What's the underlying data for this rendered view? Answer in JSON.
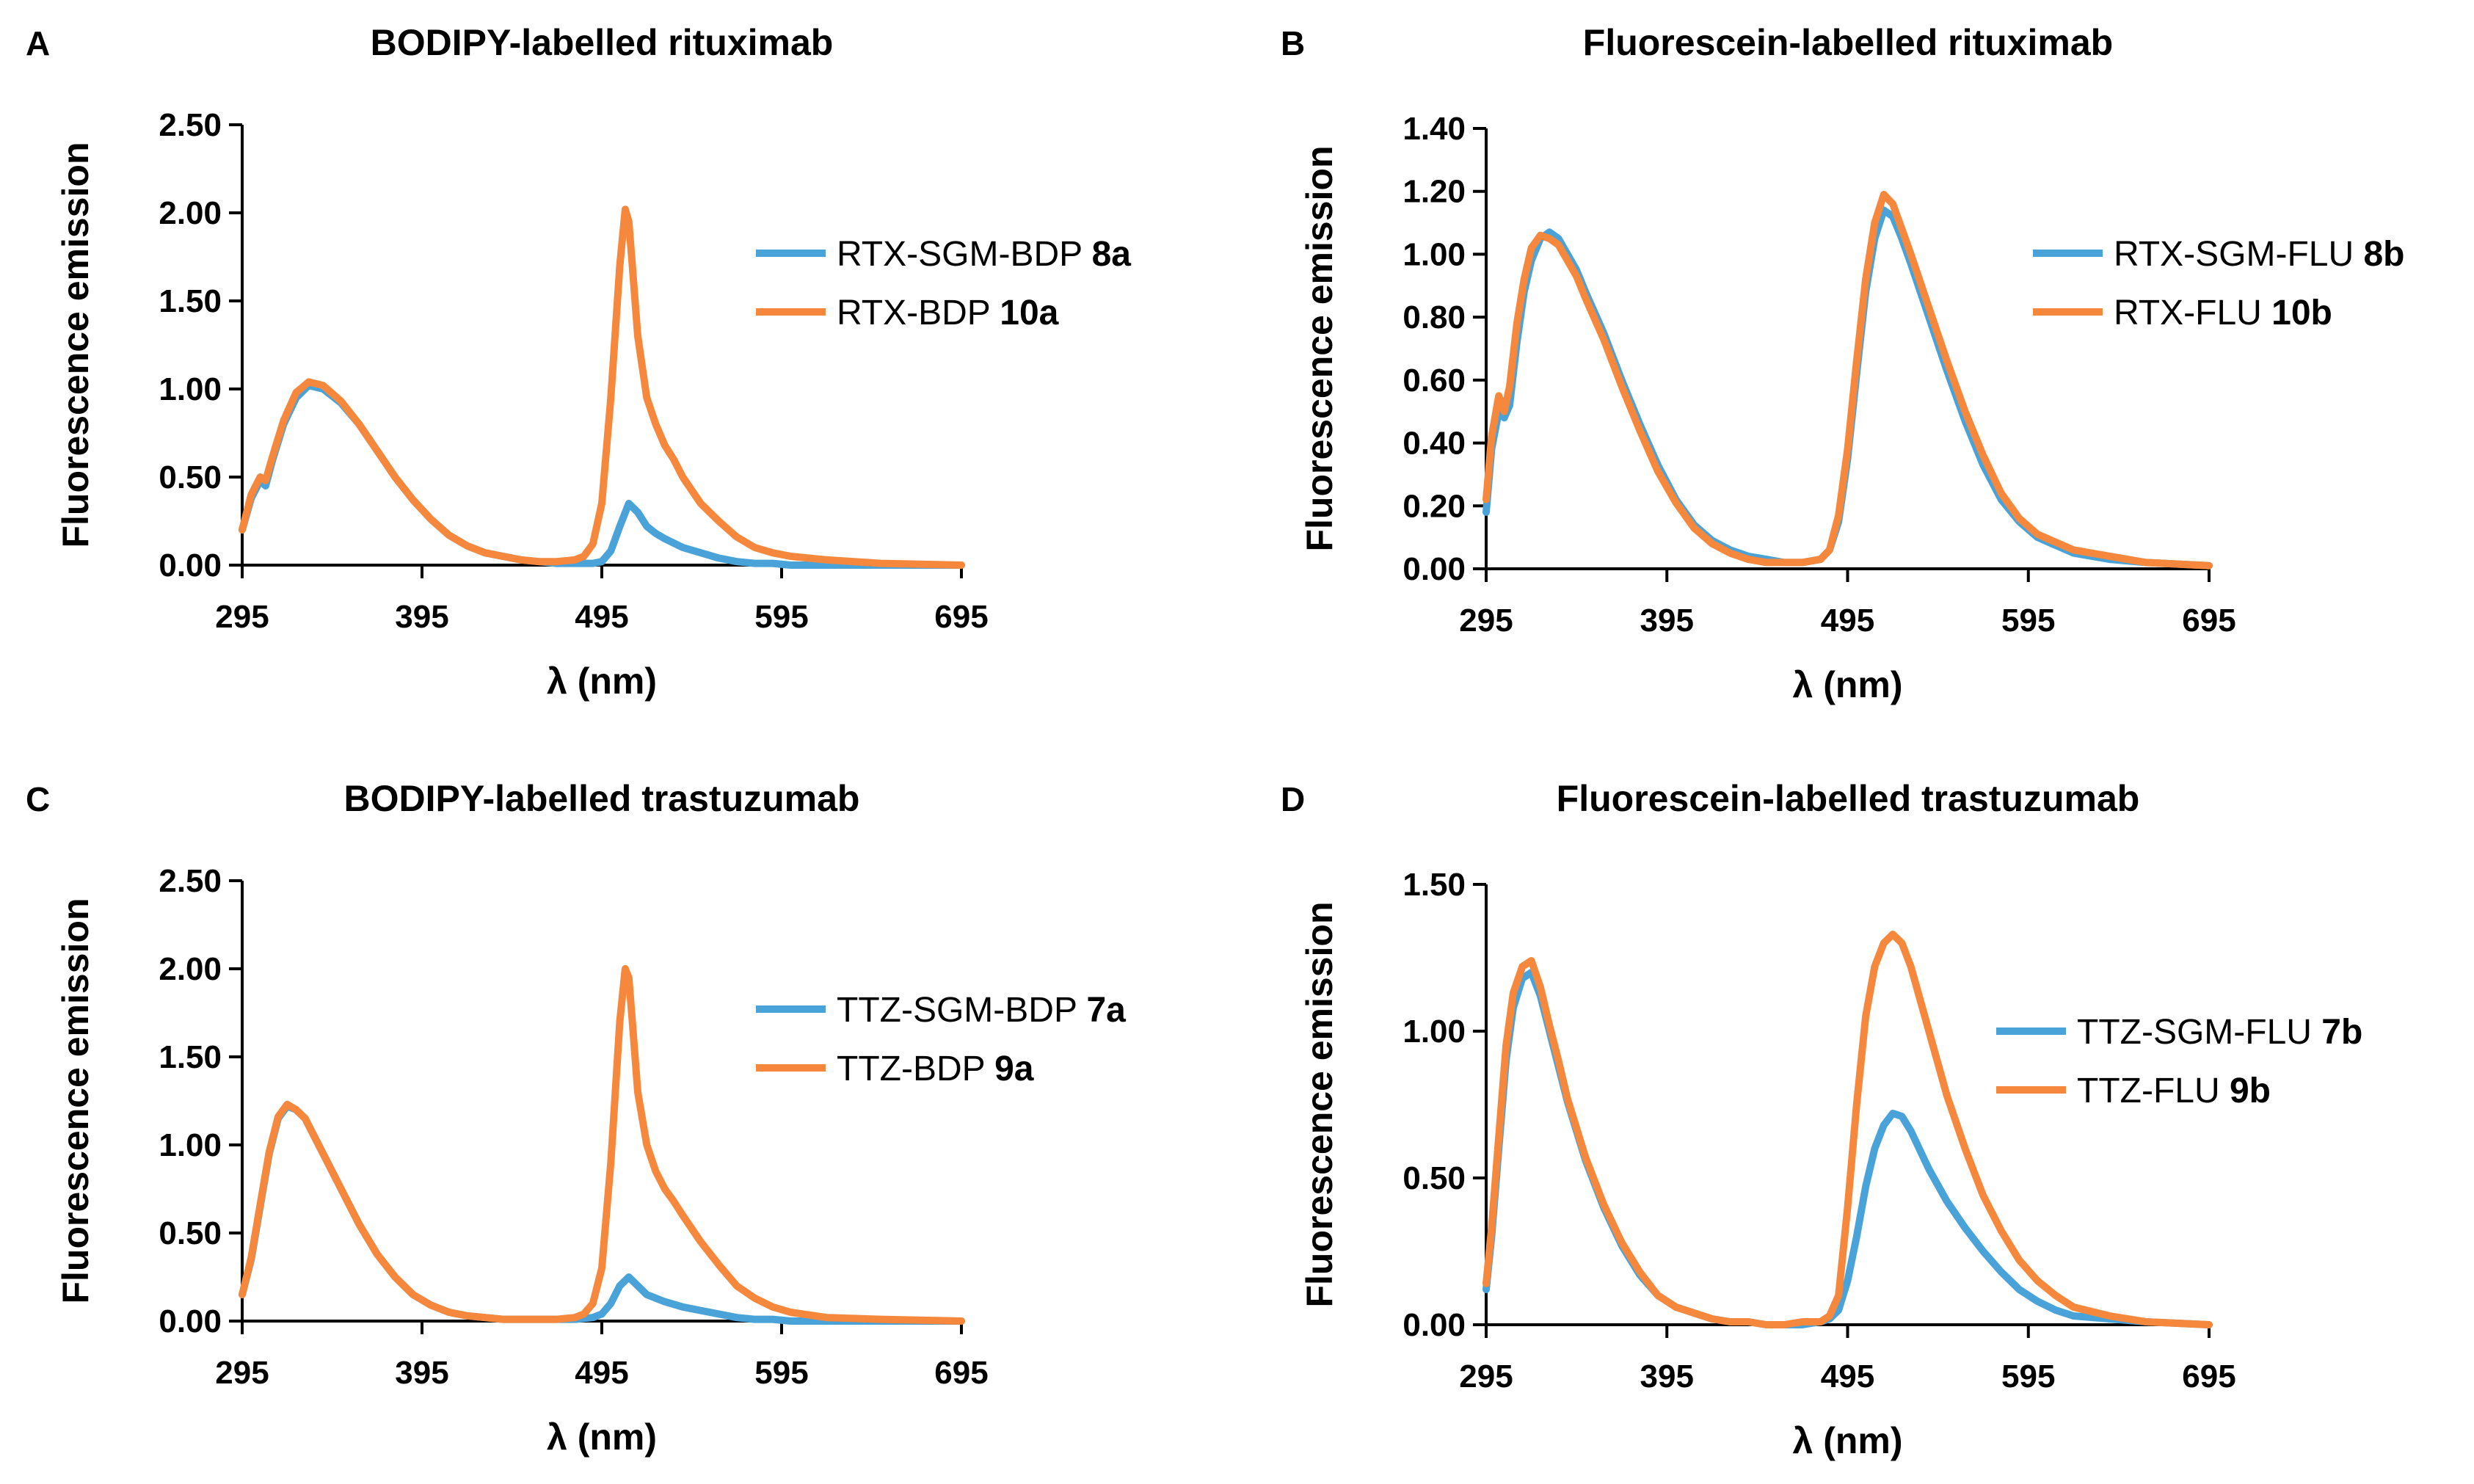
{
  "colors": {
    "blue": "#4aa3d8",
    "orange": "#f5883c",
    "axis": "#000000"
  },
  "chart_data": [
    {
      "type": "line",
      "panel_letter": "A",
      "title": "BODIPY-labelled rituximab",
      "xlabel": "λ (nm)",
      "ylabel": "Fluorescence emission",
      "xlim": [
        295,
        695
      ],
      "ylim": [
        0,
        2.5
      ],
      "xticks": [
        295,
        395,
        495,
        595,
        695
      ],
      "xtick_labels": [
        "295",
        "395",
        "495",
        "595",
        "695"
      ],
      "yticks": [
        0,
        0.5,
        1.0,
        1.5,
        2.0,
        2.5
      ],
      "ytick_labels": [
        "0.00",
        "0.50",
        "1.00",
        "1.50",
        "2.00",
        "2.50"
      ],
      "legend": "right",
      "series": [
        {
          "name": "RTX-SGM-BDP",
          "id_label": "8a",
          "color": "#4aa3d8",
          "x": [
            295,
            300,
            305,
            308,
            312,
            318,
            325,
            332,
            340,
            350,
            360,
            370,
            380,
            390,
            400,
            410,
            420,
            430,
            440,
            450,
            460,
            470,
            480,
            490,
            495,
            500,
            505,
            510,
            515,
            520,
            525,
            530,
            540,
            550,
            560,
            570,
            580,
            590,
            600,
            620,
            650,
            695
          ],
          "y": [
            0.2,
            0.38,
            0.48,
            0.45,
            0.6,
            0.8,
            0.95,
            1.02,
            1.0,
            0.92,
            0.8,
            0.65,
            0.5,
            0.37,
            0.26,
            0.17,
            0.11,
            0.07,
            0.05,
            0.03,
            0.02,
            0.01,
            0.01,
            0.01,
            0.02,
            0.08,
            0.22,
            0.35,
            0.3,
            0.22,
            0.18,
            0.15,
            0.1,
            0.07,
            0.04,
            0.02,
            0.01,
            0.01,
            0.0,
            0.0,
            0.0,
            0.0
          ]
        },
        {
          "name": "RTX-BDP",
          "id_label": "10a",
          "color": "#f5883c",
          "x": [
            295,
            300,
            305,
            308,
            312,
            318,
            325,
            332,
            340,
            350,
            360,
            370,
            380,
            390,
            400,
            410,
            420,
            430,
            440,
            450,
            460,
            470,
            480,
            485,
            490,
            495,
            500,
            505,
            508,
            510,
            512,
            515,
            520,
            525,
            530,
            535,
            540,
            550,
            560,
            570,
            580,
            590,
            600,
            620,
            650,
            695
          ],
          "y": [
            0.2,
            0.4,
            0.5,
            0.48,
            0.62,
            0.82,
            0.98,
            1.04,
            1.02,
            0.93,
            0.8,
            0.65,
            0.5,
            0.37,
            0.26,
            0.17,
            0.11,
            0.07,
            0.05,
            0.03,
            0.02,
            0.02,
            0.03,
            0.05,
            0.12,
            0.35,
            0.95,
            1.7,
            2.02,
            1.95,
            1.7,
            1.3,
            0.95,
            0.8,
            0.68,
            0.6,
            0.5,
            0.35,
            0.25,
            0.16,
            0.1,
            0.07,
            0.05,
            0.03,
            0.01,
            0.0
          ]
        }
      ]
    },
    {
      "type": "line",
      "panel_letter": "B",
      "title": "Fluorescein-labelled rituximab",
      "xlabel": "λ (nm)",
      "ylabel": "Fluorescence emission",
      "xlim": [
        295,
        695
      ],
      "ylim": [
        0,
        1.4
      ],
      "xticks": [
        295,
        395,
        495,
        595,
        695
      ],
      "xtick_labels": [
        "295",
        "395",
        "495",
        "595",
        "695"
      ],
      "yticks": [
        0,
        0.2,
        0.4,
        0.6,
        0.8,
        1.0,
        1.2,
        1.4
      ],
      "ytick_labels": [
        "0.00",
        "0.20",
        "0.40",
        "0.60",
        "0.80",
        "1.00",
        "1.20",
        "1.40"
      ],
      "legend": "right",
      "series": [
        {
          "name": "RTX-SGM-FLU",
          "id_label": "8b",
          "color": "#4aa3d8",
          "x": [
            295,
            298,
            302,
            305,
            308,
            312,
            316,
            320,
            325,
            330,
            335,
            340,
            345,
            350,
            360,
            370,
            380,
            390,
            400,
            410,
            420,
            430,
            440,
            450,
            460,
            470,
            480,
            485,
            490,
            495,
            500,
            505,
            510,
            515,
            520,
            525,
            530,
            540,
            550,
            560,
            570,
            580,
            590,
            600,
            620,
            640,
            660,
            695
          ],
          "y": [
            0.18,
            0.38,
            0.5,
            0.48,
            0.52,
            0.72,
            0.88,
            0.98,
            1.05,
            1.07,
            1.05,
            1.0,
            0.95,
            0.88,
            0.75,
            0.6,
            0.46,
            0.33,
            0.22,
            0.14,
            0.09,
            0.06,
            0.04,
            0.03,
            0.02,
            0.02,
            0.03,
            0.06,
            0.15,
            0.35,
            0.62,
            0.88,
            1.05,
            1.14,
            1.12,
            1.05,
            0.97,
            0.8,
            0.63,
            0.47,
            0.33,
            0.22,
            0.15,
            0.1,
            0.05,
            0.03,
            0.02,
            0.01
          ]
        },
        {
          "name": "RTX-FLU",
          "id_label": "10b",
          "color": "#f5883c",
          "x": [
            295,
            298,
            302,
            305,
            308,
            312,
            316,
            320,
            325,
            330,
            335,
            340,
            345,
            350,
            360,
            370,
            380,
            390,
            400,
            410,
            420,
            430,
            440,
            450,
            460,
            470,
            480,
            485,
            490,
            495,
            500,
            505,
            510,
            515,
            520,
            525,
            530,
            540,
            550,
            560,
            570,
            580,
            590,
            600,
            620,
            640,
            660,
            695
          ],
          "y": [
            0.22,
            0.42,
            0.55,
            0.5,
            0.58,
            0.78,
            0.92,
            1.02,
            1.06,
            1.05,
            1.03,
            0.98,
            0.93,
            0.86,
            0.73,
            0.58,
            0.44,
            0.31,
            0.21,
            0.13,
            0.08,
            0.05,
            0.03,
            0.02,
            0.02,
            0.02,
            0.03,
            0.06,
            0.17,
            0.38,
            0.66,
            0.92,
            1.1,
            1.19,
            1.16,
            1.08,
            1.0,
            0.83,
            0.66,
            0.5,
            0.36,
            0.24,
            0.16,
            0.11,
            0.06,
            0.04,
            0.02,
            0.01
          ]
        }
      ]
    },
    {
      "type": "line",
      "panel_letter": "C",
      "title": "BODIPY-labelled trastuzumab",
      "xlabel": "λ (nm)",
      "ylabel": "Fluorescence emission",
      "xlim": [
        295,
        695
      ],
      "ylim": [
        0,
        2.5
      ],
      "xticks": [
        295,
        395,
        495,
        595,
        695
      ],
      "xtick_labels": [
        "295",
        "395",
        "495",
        "595",
        "695"
      ],
      "yticks": [
        0,
        0.5,
        1.0,
        1.5,
        2.0,
        2.5
      ],
      "ytick_labels": [
        "0.00",
        "0.50",
        "1.00",
        "1.50",
        "2.00",
        "2.50"
      ],
      "legend": "right",
      "series": [
        {
          "name": "TTZ-SGM-BDP",
          "id_label": "7a",
          "color": "#4aa3d8",
          "x": [
            295,
            300,
            305,
            310,
            315,
            320,
            325,
            330,
            335,
            340,
            350,
            360,
            370,
            380,
            390,
            400,
            410,
            420,
            430,
            440,
            450,
            460,
            470,
            480,
            490,
            495,
            500,
            505,
            510,
            515,
            520,
            525,
            530,
            540,
            550,
            560,
            570,
            580,
            590,
            600,
            620,
            650,
            695
          ],
          "y": [
            0.15,
            0.35,
            0.65,
            0.95,
            1.15,
            1.22,
            1.2,
            1.15,
            1.05,
            0.95,
            0.75,
            0.55,
            0.38,
            0.25,
            0.15,
            0.09,
            0.05,
            0.03,
            0.02,
            0.01,
            0.01,
            0.01,
            0.01,
            0.01,
            0.02,
            0.04,
            0.1,
            0.2,
            0.25,
            0.2,
            0.15,
            0.13,
            0.11,
            0.08,
            0.06,
            0.04,
            0.02,
            0.01,
            0.01,
            0.0,
            0.0,
            0.0,
            0.0
          ]
        },
        {
          "name": "TTZ-BDP",
          "id_label": "9a",
          "color": "#f5883c",
          "x": [
            295,
            300,
            305,
            310,
            315,
            320,
            325,
            330,
            335,
            340,
            350,
            360,
            370,
            380,
            390,
            400,
            410,
            420,
            430,
            440,
            450,
            460,
            470,
            480,
            485,
            490,
            495,
            500,
            505,
            508,
            510,
            512,
            515,
            520,
            525,
            530,
            535,
            540,
            550,
            560,
            570,
            580,
            590,
            600,
            620,
            650,
            695
          ],
          "y": [
            0.15,
            0.36,
            0.66,
            0.96,
            1.16,
            1.23,
            1.2,
            1.15,
            1.05,
            0.95,
            0.75,
            0.55,
            0.38,
            0.25,
            0.15,
            0.09,
            0.05,
            0.03,
            0.02,
            0.01,
            0.01,
            0.01,
            0.01,
            0.02,
            0.04,
            0.1,
            0.3,
            0.9,
            1.7,
            2.0,
            1.95,
            1.7,
            1.3,
            1.0,
            0.85,
            0.75,
            0.68,
            0.6,
            0.45,
            0.32,
            0.2,
            0.13,
            0.08,
            0.05,
            0.02,
            0.01,
            0.0
          ]
        }
      ]
    },
    {
      "type": "line",
      "panel_letter": "D",
      "title": "Fluorescein-labelled trastuzumab",
      "xlabel": "λ (nm)",
      "ylabel": "Fluorescence emission",
      "xlim": [
        295,
        695
      ],
      "ylim": [
        0,
        1.5
      ],
      "xticks": [
        295,
        395,
        495,
        595,
        695
      ],
      "xtick_labels": [
        "295",
        "395",
        "495",
        "595",
        "695"
      ],
      "yticks": [
        0,
        0.5,
        1.0,
        1.5
      ],
      "ytick_labels": [
        "0.00",
        "0.50",
        "1.00",
        "1.50"
      ],
      "legend": "right",
      "series": [
        {
          "name": "TTZ-SGM-FLU",
          "id_label": "7b",
          "color": "#4aa3d8",
          "x": [
            295,
            298,
            302,
            306,
            310,
            315,
            320,
            325,
            330,
            335,
            340,
            350,
            360,
            370,
            380,
            390,
            400,
            410,
            420,
            430,
            440,
            450,
            460,
            470,
            480,
            485,
            490,
            495,
            500,
            505,
            510,
            515,
            520,
            525,
            530,
            540,
            550,
            560,
            570,
            580,
            590,
            600,
            610,
            620,
            640,
            660,
            695
          ],
          "y": [
            0.12,
            0.3,
            0.6,
            0.9,
            1.08,
            1.18,
            1.2,
            1.12,
            1.0,
            0.88,
            0.76,
            0.56,
            0.4,
            0.27,
            0.17,
            0.1,
            0.06,
            0.04,
            0.02,
            0.01,
            0.01,
            0.0,
            0.0,
            0.0,
            0.01,
            0.02,
            0.05,
            0.15,
            0.3,
            0.47,
            0.6,
            0.68,
            0.72,
            0.71,
            0.66,
            0.53,
            0.42,
            0.33,
            0.25,
            0.18,
            0.12,
            0.08,
            0.05,
            0.03,
            0.02,
            0.01,
            0.0
          ]
        },
        {
          "name": "TTZ-FLU",
          "id_label": "9b",
          "color": "#f5883c",
          "x": [
            295,
            298,
            302,
            306,
            310,
            315,
            320,
            325,
            330,
            335,
            340,
            350,
            360,
            370,
            380,
            390,
            400,
            410,
            420,
            430,
            440,
            450,
            460,
            470,
            480,
            485,
            490,
            495,
            500,
            505,
            510,
            515,
            520,
            525,
            530,
            540,
            550,
            560,
            570,
            580,
            590,
            600,
            610,
            620,
            640,
            660,
            695
          ],
          "y": [
            0.14,
            0.33,
            0.64,
            0.95,
            1.13,
            1.22,
            1.24,
            1.15,
            1.02,
            0.9,
            0.77,
            0.57,
            0.41,
            0.28,
            0.18,
            0.1,
            0.06,
            0.04,
            0.02,
            0.01,
            0.01,
            0.0,
            0.0,
            0.01,
            0.01,
            0.03,
            0.1,
            0.4,
            0.75,
            1.05,
            1.22,
            1.3,
            1.33,
            1.3,
            1.22,
            1.0,
            0.78,
            0.6,
            0.44,
            0.32,
            0.22,
            0.15,
            0.1,
            0.06,
            0.03,
            0.01,
            0.0
          ]
        }
      ]
    }
  ]
}
